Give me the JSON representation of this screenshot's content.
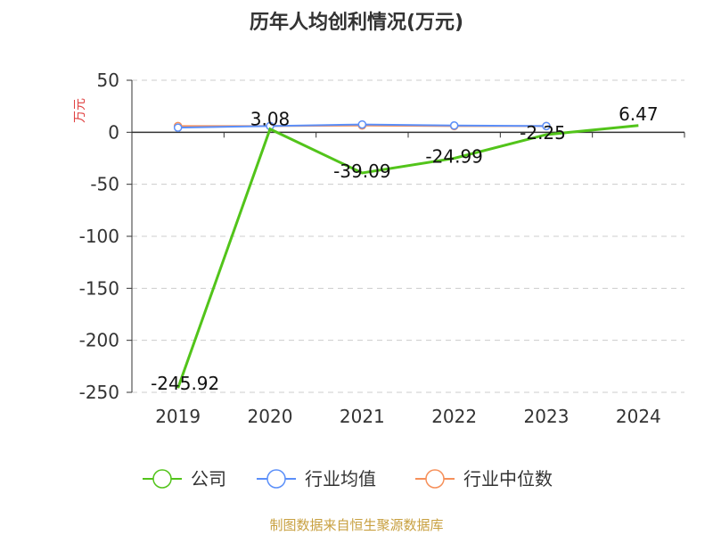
{
  "chart_data": {
    "type": "line",
    "title": "历年人均创利情况(万元)",
    "ylabel": "万元",
    "categories": [
      "2019",
      "2020",
      "2021",
      "2022",
      "2023",
      "2024"
    ],
    "ylim": [
      -250,
      50
    ],
    "yticks": [
      50,
      0,
      -50,
      -100,
      -150,
      -200,
      -250
    ],
    "grid": true,
    "legend_position": "bottom",
    "series": [
      {
        "name": "公司",
        "color": "#52c41a",
        "values": [
          -245.92,
          3.08,
          -39.09,
          -24.99,
          -2.25,
          6.47
        ],
        "labels": [
          "-245.92",
          "3.08",
          "-39.09",
          "-24.99",
          "-2.25",
          "6.47"
        ]
      },
      {
        "name": "行业均值",
        "color": "#5b8ff9",
        "values": [
          4.5,
          6.0,
          7.5,
          6.5,
          6.0,
          null
        ]
      },
      {
        "name": "行业中位数",
        "color": "#f6905a",
        "values": [
          6.0,
          6.0,
          6.5,
          6.0,
          6.0,
          null
        ]
      }
    ]
  },
  "source_text": "制图数据来自恒生聚源数据库"
}
